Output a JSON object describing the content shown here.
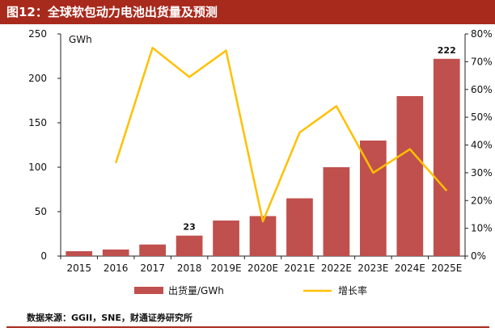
{
  "header": {
    "title": "图12：全球软包动力电池出货量及预测"
  },
  "footer": {
    "source": "数据来源：GGII，SNE，财通证券研究所"
  },
  "colors": {
    "header_bg": "#a82a1d",
    "bar": "#c0504d",
    "line": "#ffc000"
  },
  "chart_data": {
    "type": "bar",
    "title": "",
    "categories": [
      "2015",
      "2016",
      "2017",
      "2018",
      "2019E",
      "2020E",
      "2021E",
      "2022E",
      "2023E",
      "2024E",
      "2025E"
    ],
    "y_unit_label": "GWh",
    "ylim": [
      0,
      250
    ],
    "y_ticks": [
      "0",
      "50",
      "100",
      "150",
      "200",
      "250"
    ],
    "y2lim": [
      0,
      80
    ],
    "y2_ticks": [
      "0%",
      "10%",
      "20%",
      "30%",
      "40%",
      "50%",
      "60%",
      "70%",
      "80%"
    ],
    "grid": false,
    "legend_position": "bottom",
    "series": [
      {
        "name": "出货量/GWh",
        "type": "bar",
        "axis": "left",
        "values": [
          5.5,
          7.4,
          13,
          23,
          40,
          45,
          65,
          100,
          130,
          180,
          222
        ]
      },
      {
        "name": "增长率",
        "type": "line",
        "axis": "right",
        "values": [
          null,
          33.5,
          75,
          64.5,
          74,
          12.5,
          44.5,
          54,
          30,
          38.5,
          23.5
        ]
      }
    ],
    "data_labels": [
      {
        "category": "2018",
        "text": "23"
      },
      {
        "category": "2025E",
        "text": "222"
      }
    ]
  }
}
